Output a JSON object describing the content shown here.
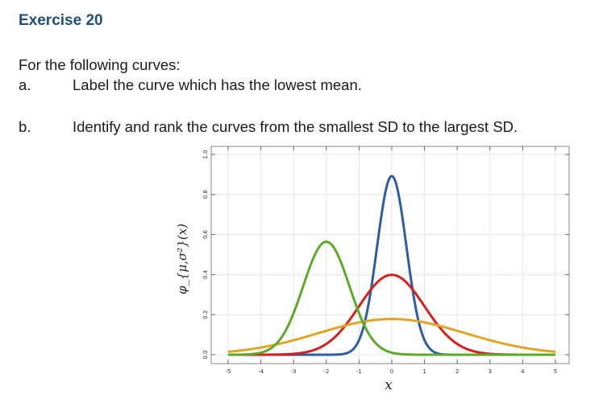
{
  "header": {
    "title": "Exercise 20"
  },
  "question": {
    "intro": "For the following curves:",
    "items": [
      {
        "letter": "a.",
        "text": "Label the curve which has the lowest mean."
      },
      {
        "letter": "b.",
        "text": "Identify and rank the curves from the smallest SD to the largest SD."
      }
    ]
  },
  "chart_data": {
    "type": "line",
    "title": "",
    "xlabel": "x",
    "ylabel": "φ_{μ,σ²}(x)",
    "xlim": [
      -5,
      5
    ],
    "ylim": [
      0,
      1.0
    ],
    "xticks": [
      "-5",
      "-4",
      "-3",
      "-2",
      "-1",
      "0",
      "1",
      "2",
      "3",
      "4",
      "5"
    ],
    "yticks": [
      "0.0",
      "0.2",
      "0.4",
      "0.6",
      "0.8",
      "1.0"
    ],
    "grid": true,
    "legend": "none",
    "series": [
      {
        "mu": 0,
        "variance": 0.2,
        "color": "#2b5ea7"
      },
      {
        "mu": 0,
        "variance": 1.0,
        "color": "#d42020"
      },
      {
        "mu": 0,
        "variance": 5.0,
        "color": "#e0a526"
      },
      {
        "mu": -2,
        "variance": 0.5,
        "color": "#5caa2a"
      }
    ]
  }
}
